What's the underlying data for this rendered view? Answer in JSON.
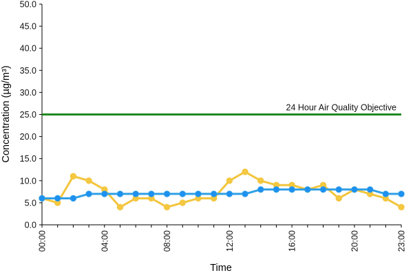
{
  "chart_data": {
    "type": "line",
    "title": "",
    "xlabel": "Time",
    "ylabel": "Concentration (µg/m³)",
    "ylim": [
      0,
      50
    ],
    "y_ticks": [
      "0.0",
      "5.0",
      "10.0",
      "15.0",
      "20.0",
      "25.0",
      "30.0",
      "35.0",
      "40.0",
      "45.0",
      "50.0"
    ],
    "x": [
      "00:00",
      "01:00",
      "02:00",
      "03:00",
      "04:00",
      "05:00",
      "06:00",
      "07:00",
      "08:00",
      "09:00",
      "10:00",
      "11:00",
      "12:00",
      "13:00",
      "14:00",
      "15:00",
      "16:00",
      "17:00",
      "18:00",
      "19:00",
      "20:00",
      "21:00",
      "22:00",
      "23:00"
    ],
    "x_tick_labels": [
      "00:00",
      "04:00",
      "08:00",
      "12:00",
      "16:00",
      "20:00",
      "23:00"
    ],
    "grid": false,
    "legend": "none",
    "series": [
      {
        "color": "#f2c53d",
        "marker_color": "#f5c842",
        "values": [
          6,
          5,
          11,
          10,
          8,
          4,
          6,
          6,
          4,
          5,
          6,
          6,
          10,
          12,
          10,
          9,
          9,
          8,
          9,
          6,
          8,
          7,
          6,
          4
        ]
      },
      {
        "color": "#2e9fe6",
        "marker_color": "#1e90f0",
        "values": [
          6,
          6,
          6,
          7,
          7,
          7,
          7,
          7,
          7,
          7,
          7,
          7,
          7,
          7,
          8,
          8,
          8,
          8,
          8,
          8,
          8,
          8,
          7,
          7
        ]
      }
    ],
    "reference_line": {
      "value": 25,
      "label": "24 Hour Air Quality Objective",
      "color": "#1f8a1f"
    }
  }
}
